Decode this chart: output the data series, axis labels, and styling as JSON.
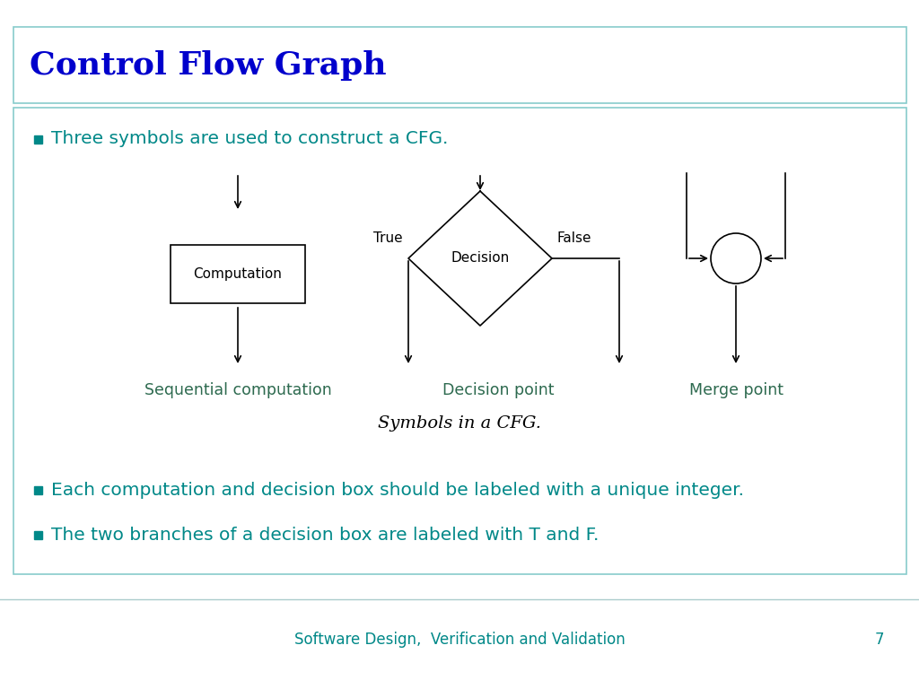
{
  "title": "Control Flow Graph",
  "title_color": "#0000CC",
  "title_fontsize": 26,
  "title_border_color": "#88CCCC",
  "body_border_color": "#88CCCC",
  "bullet_color": "#008888",
  "bullet_text_color": "#008888",
  "bullet_fontsize": 14.5,
  "bullets": [
    "Three symbols are used to construct a CFG.",
    "Each computation and decision box should be labeled with a unique integer.",
    "The two branches of a decision box are labeled with T and F."
  ],
  "diagram_label_color": "#2D6A4F",
  "diagram_label_fontsize": 12.5,
  "footer_text": "Software Design,  Verification and Validation",
  "footer_color": "#008888",
  "footer_fontsize": 12,
  "page_number": "7",
  "bg_color": "#FFFFFF",
  "caption_text": "Symbols in a CFG.",
  "caption_fontsize": 14
}
